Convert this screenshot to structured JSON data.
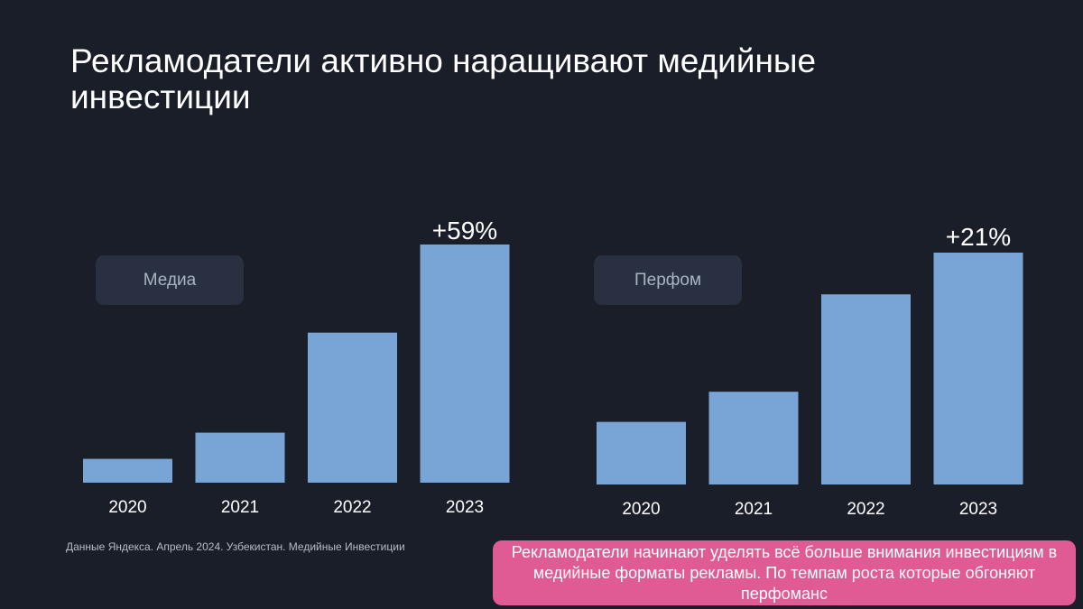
{
  "title": "Рекламодатели активно наращивают медийные инвестиции",
  "colors": {
    "background": "#1a1e29",
    "bar": "#78a5d6",
    "note": "#e05a93",
    "pill": "#283041"
  },
  "chart_data": [
    {
      "type": "bar",
      "label": "Медиа",
      "categories": [
        "2020",
        "2021",
        "2022",
        "2023"
      ],
      "values": [
        10,
        21,
        63,
        100
      ],
      "annotation": {
        "category": "2023",
        "text": "+59%"
      }
    },
    {
      "type": "bar",
      "label": "Перфом",
      "categories": [
        "2020",
        "2021",
        "2022",
        "2023"
      ],
      "values": [
        27,
        40,
        82,
        100
      ],
      "annotation": {
        "category": "2023",
        "text": "+21%"
      }
    }
  ],
  "source": "Данные Яндекса. Апрель 2024. Узбекистан. Медийные Инвестиции",
  "note": "Рекламодатели начинают уделять всё больше внимания инвестициям в медийные форматы рекламы. По темпам роста которые обгоняют перфоманс"
}
